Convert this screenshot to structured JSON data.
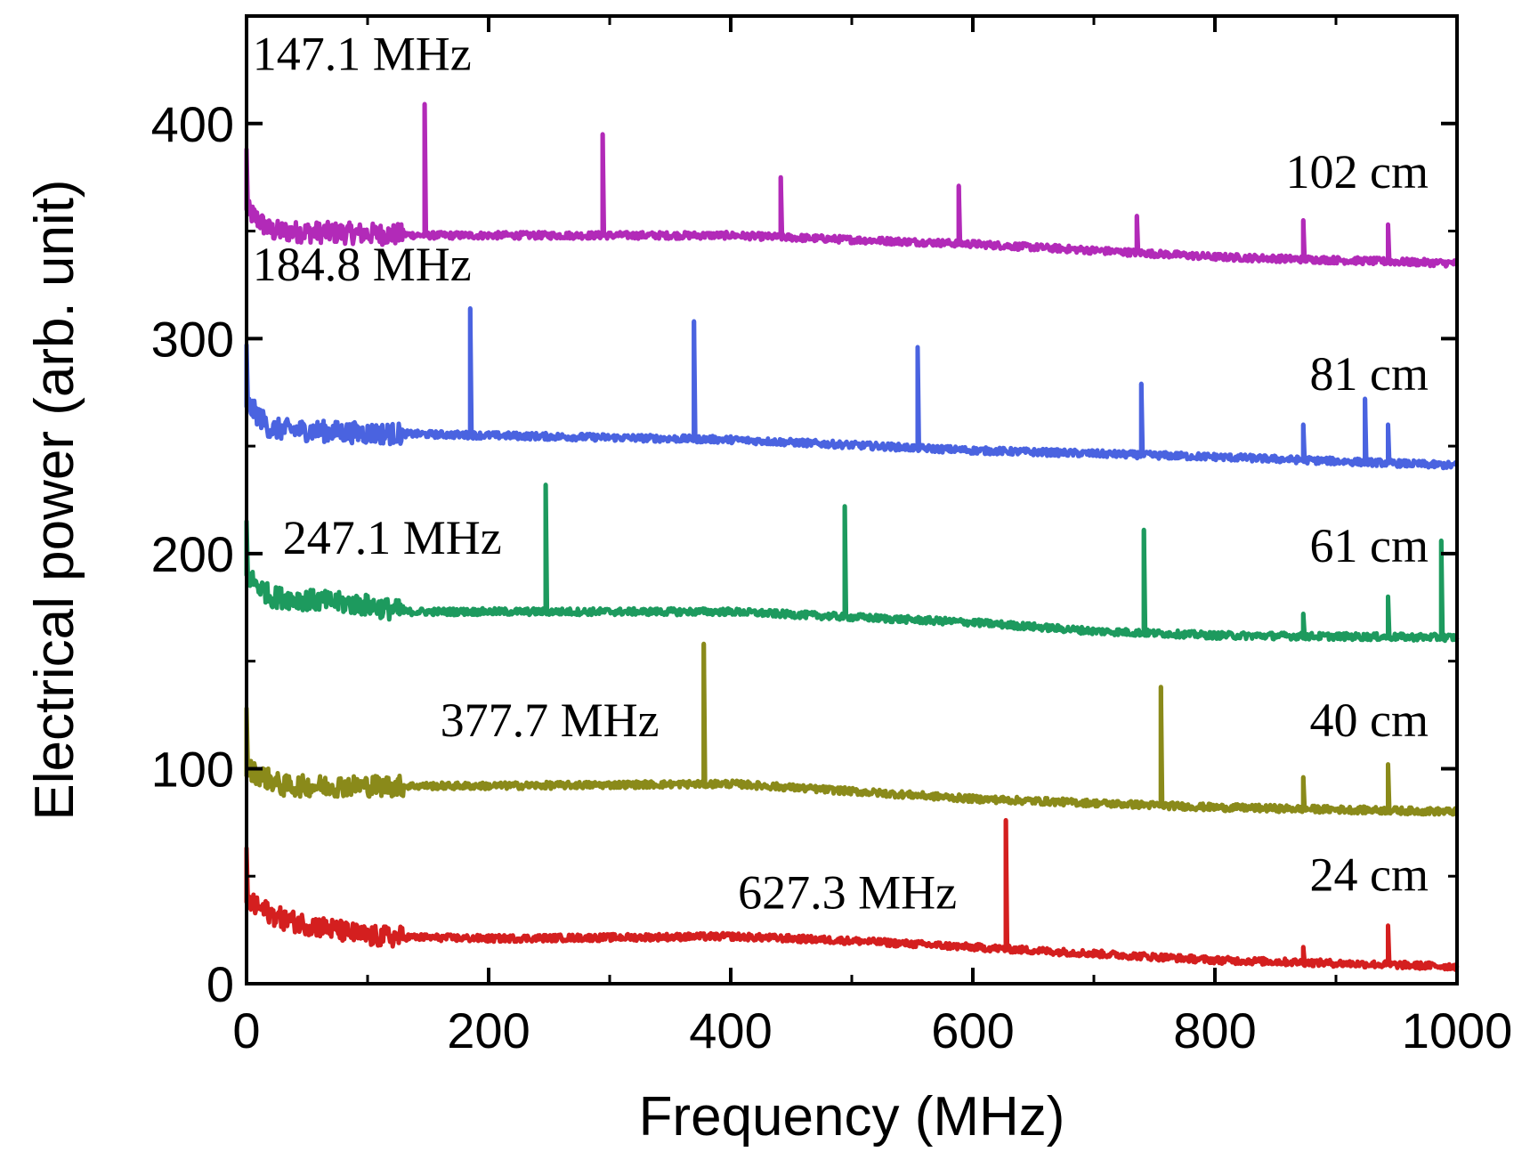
{
  "chart_data": {
    "type": "line",
    "title": "",
    "xlabel": "Frequency (MHz)",
    "ylabel": "Electrical power (arb. unit)",
    "xlim": [
      0,
      1000
    ],
    "ylim": [
      0,
      450
    ],
    "xticks": [
      "0",
      "200",
      "400",
      "600",
      "800",
      "1000"
    ],
    "xtick_values": [
      0,
      200,
      400,
      600,
      800,
      1000
    ],
    "yticks": [
      "0",
      "100",
      "200",
      "300",
      "400"
    ],
    "ytick_values": [
      0,
      100,
      200,
      300,
      400
    ],
    "grid": false,
    "series": [
      {
        "name": "102 cm",
        "label": "102 cm",
        "fundamental_label": "147.1 MHz",
        "color": "#b22ab8",
        "baseline": [
          [
            0,
            360
          ],
          [
            20,
            350
          ],
          [
            150,
            348
          ],
          [
            400,
            348
          ],
          [
            600,
            344
          ],
          [
            700,
            341
          ],
          [
            800,
            338
          ],
          [
            1000,
            335
          ]
        ],
        "spikes": [
          [
            0,
            388
          ],
          [
            147.1,
            409
          ],
          [
            294.2,
            395
          ],
          [
            441.3,
            375
          ],
          [
            588.4,
            371
          ],
          [
            735.5,
            357
          ],
          [
            873,
            355
          ],
          [
            943,
            353
          ]
        ],
        "fundamental_label_pos": [
          5,
          425
        ]
      },
      {
        "name": "81 cm",
        "label": "81 cm",
        "fundamental_label": "184.8 MHz",
        "color": "#4a63e0",
        "baseline": [
          [
            0,
            270
          ],
          [
            20,
            258
          ],
          [
            100,
            256
          ],
          [
            200,
            255
          ],
          [
            400,
            253
          ],
          [
            600,
            248
          ],
          [
            800,
            245
          ],
          [
            1000,
            241
          ]
        ],
        "spikes": [
          [
            0,
            297
          ],
          [
            184.8,
            314
          ],
          [
            369.6,
            308
          ],
          [
            554.4,
            296
          ],
          [
            739.2,
            279
          ],
          [
            873,
            260
          ],
          [
            924,
            272
          ],
          [
            943,
            260
          ]
        ],
        "fundamental_label_pos": [
          5,
          327
        ]
      },
      {
        "name": "61 cm",
        "label": "61 cm",
        "fundamental_label": "247.1 MHz",
        "color": "#1d9a5e",
        "baseline": [
          [
            0,
            190
          ],
          [
            20,
            180
          ],
          [
            100,
            176
          ],
          [
            130,
            173
          ],
          [
            400,
            173
          ],
          [
            600,
            168
          ],
          [
            700,
            164
          ],
          [
            800,
            162
          ],
          [
            1000,
            161
          ]
        ],
        "spikes": [
          [
            0,
            215
          ],
          [
            247.1,
            232
          ],
          [
            494.2,
            222
          ],
          [
            741.3,
            211
          ],
          [
            873,
            172
          ],
          [
            943,
            180
          ],
          [
            987,
            206
          ]
        ],
        "fundamental_label_pos": [
          30,
          200
        ]
      },
      {
        "name": "40 cm",
        "label": "40 cm",
        "fundamental_label": "377.7 MHz",
        "color": "#8a8a1a",
        "baseline": [
          [
            0,
            100
          ],
          [
            30,
            92
          ],
          [
            200,
            92
          ],
          [
            400,
            93
          ],
          [
            600,
            86
          ],
          [
            700,
            84
          ],
          [
            800,
            82
          ],
          [
            1000,
            80
          ]
        ],
        "spikes": [
          [
            0,
            128
          ],
          [
            377.7,
            158
          ],
          [
            755.4,
            138
          ],
          [
            873,
            96
          ],
          [
            943,
            102
          ]
        ],
        "fundamental_label_pos": [
          160,
          115
        ]
      },
      {
        "name": "24 cm",
        "label": "24 cm",
        "fundamental_label": "627.3 MHz",
        "color": "#d41f1f",
        "baseline": [
          [
            0,
            38
          ],
          [
            30,
            30
          ],
          [
            100,
            22
          ],
          [
            200,
            21
          ],
          [
            400,
            22
          ],
          [
            500,
            20
          ],
          [
            600,
            17
          ],
          [
            700,
            14
          ],
          [
            800,
            11
          ],
          [
            1000,
            8
          ]
        ],
        "spikes": [
          [
            0,
            63
          ],
          [
            627.3,
            76
          ],
          [
            873,
            17
          ],
          [
            943,
            27
          ]
        ],
        "fundamental_label_pos": [
          406,
          35
        ]
      }
    ]
  }
}
